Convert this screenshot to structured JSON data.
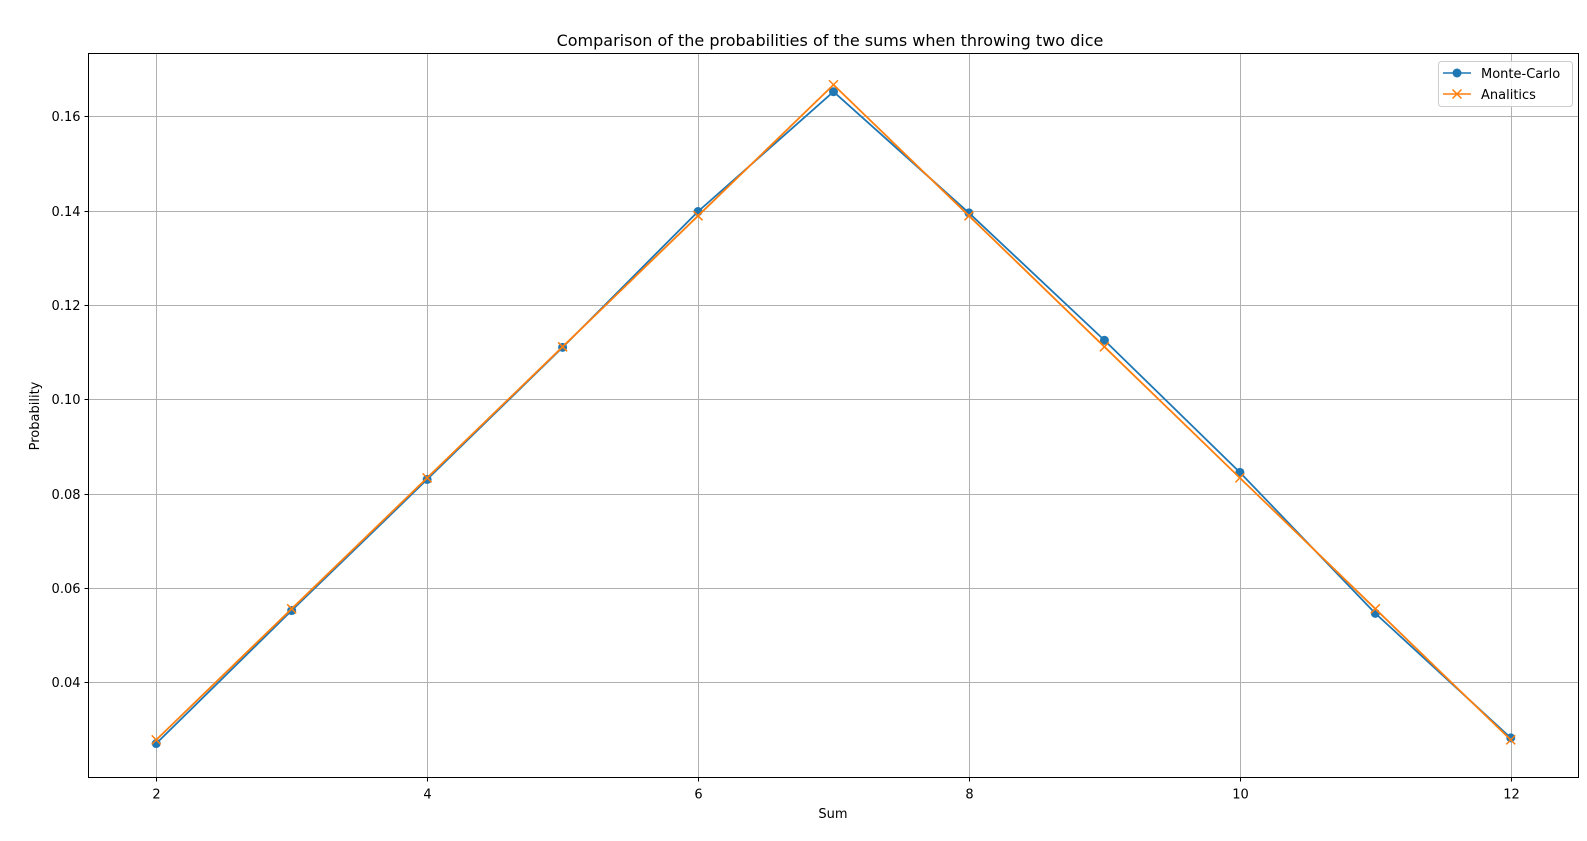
{
  "chart_data": {
    "type": "line",
    "title": "Comparison of the probabilities of the sums when throwing two dice",
    "xlabel": "Sum",
    "ylabel": "Probability",
    "x": [
      2,
      3,
      4,
      5,
      6,
      7,
      8,
      9,
      10,
      11,
      12
    ],
    "xlim": [
      1.5,
      12.5
    ],
    "ylim": [
      0.0198,
      0.1733
    ],
    "xticks": [
      2,
      4,
      6,
      8,
      10,
      12
    ],
    "yticks": [
      0.04,
      0.06,
      0.08,
      0.1,
      0.12,
      0.14,
      0.16
    ],
    "ytick_labels": [
      "0.04",
      "0.06",
      "0.08",
      "0.10",
      "0.12",
      "0.14",
      "0.16"
    ],
    "grid": true,
    "legend_position": "top-right",
    "series": [
      {
        "name": "Monte-Carlo",
        "marker": "circle",
        "color": "#1f77b4",
        "values": [
          0.027,
          0.0552,
          0.083,
          0.111,
          0.1398,
          0.1652,
          0.1395,
          0.1125,
          0.0845,
          0.0546,
          0.0282
        ]
      },
      {
        "name": "Analitics",
        "marker": "x",
        "color": "#ff7f0e",
        "values": [
          0.02778,
          0.05556,
          0.08333,
          0.11111,
          0.13889,
          0.16667,
          0.13889,
          0.11111,
          0.08333,
          0.05556,
          0.02778
        ]
      }
    ]
  }
}
